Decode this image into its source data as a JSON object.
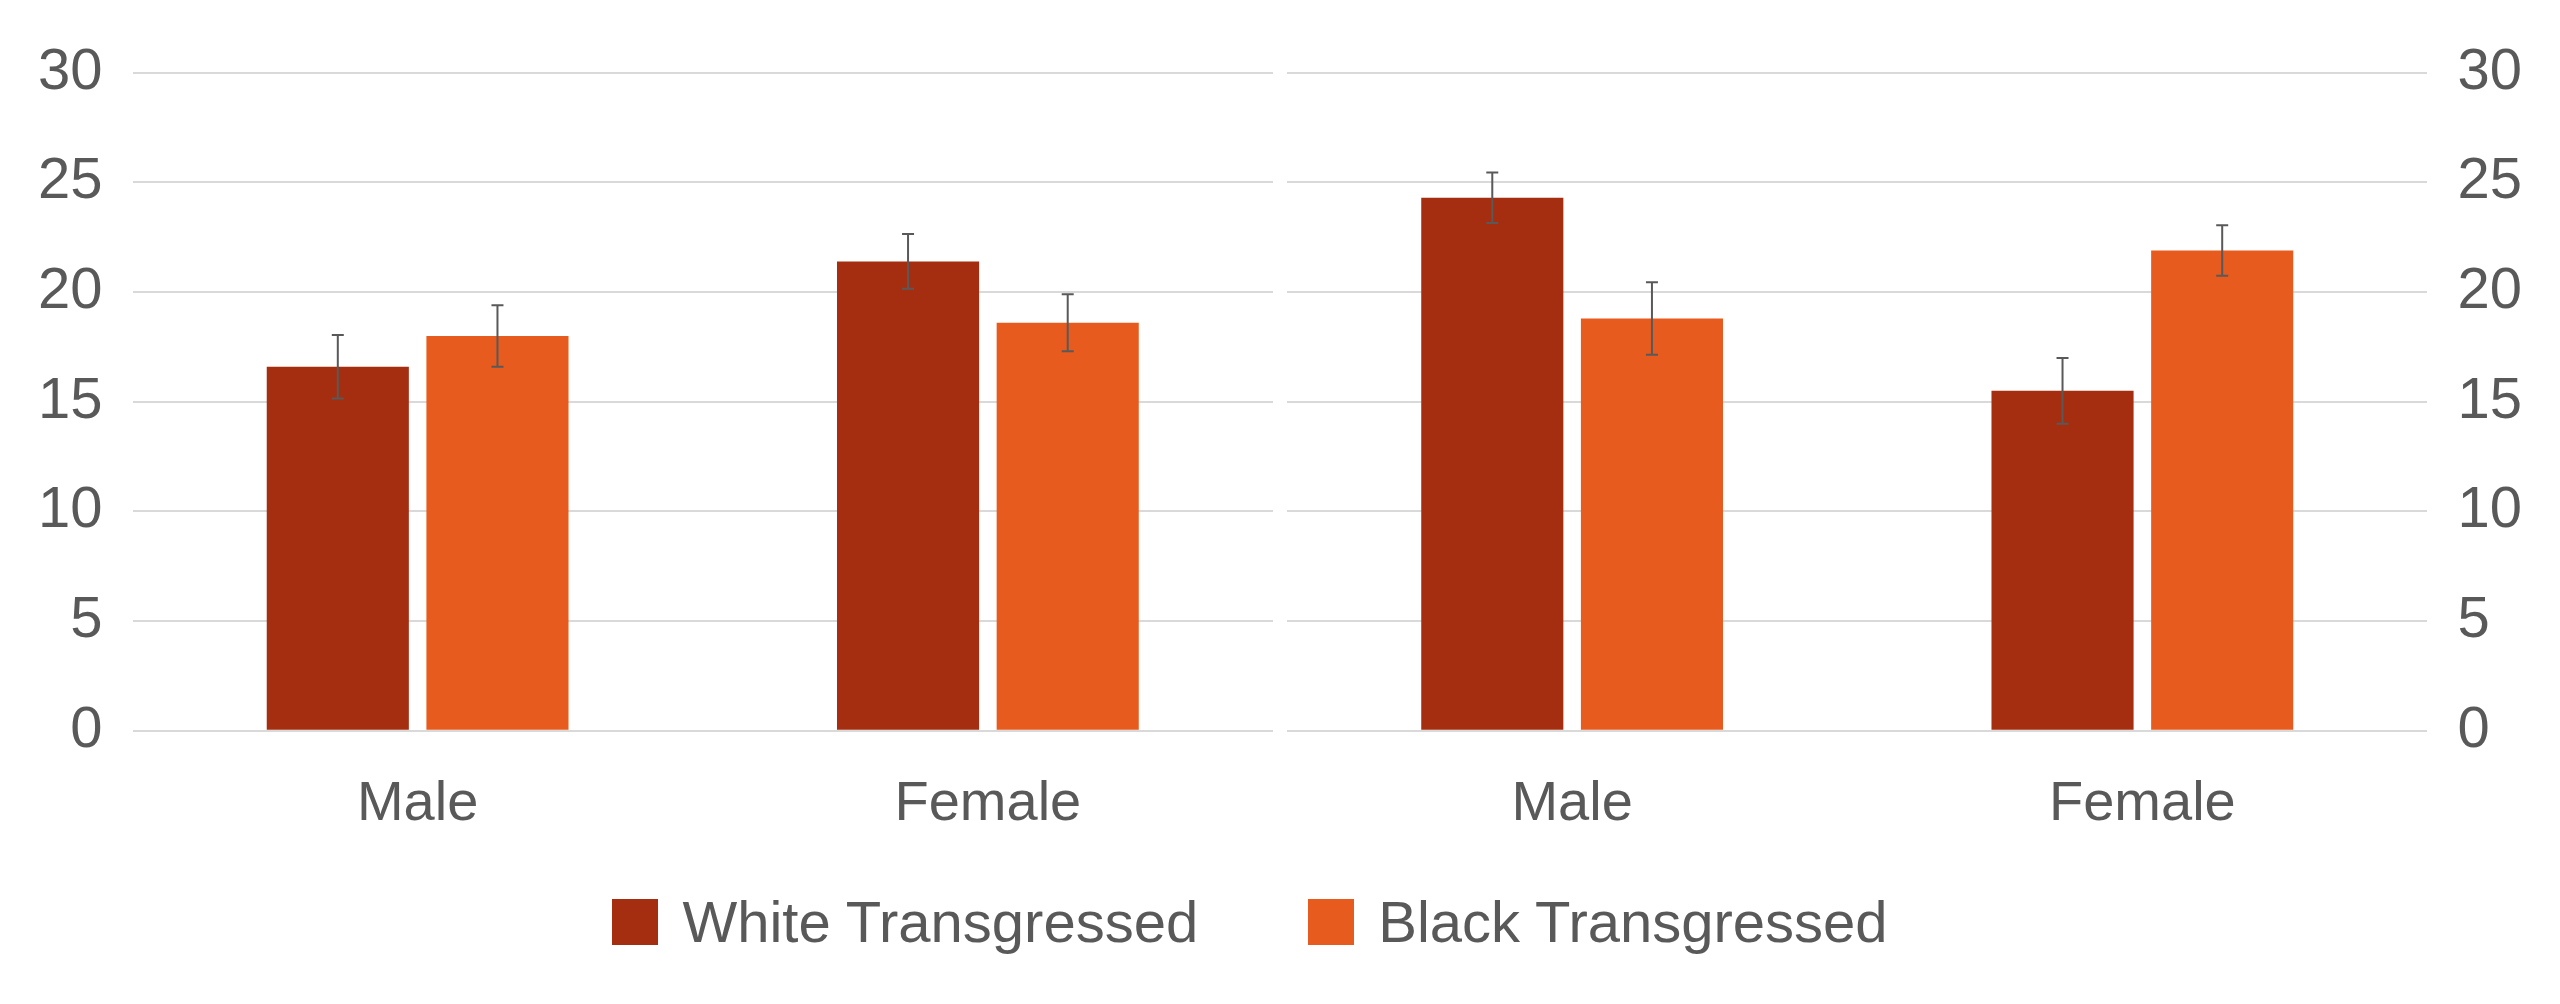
{
  "chart_data": [
    {
      "type": "bar",
      "categories": [
        "Male",
        "Female"
      ],
      "series": [
        {
          "name": "White Transgressed",
          "color": "#a52e10",
          "values": [
            16.6,
            21.4
          ],
          "errors": [
            1.45,
            1.25
          ]
        },
        {
          "name": "Black Transgressed",
          "color": "#e75b1e",
          "values": [
            18.0,
            18.6
          ],
          "errors": [
            1.4,
            1.3
          ]
        }
      ],
      "ylim": [
        0,
        30
      ],
      "yticks": [
        0,
        5,
        10,
        15,
        20,
        25,
        30
      ],
      "grid": "y",
      "legend": "bottom"
    },
    {
      "type": "bar",
      "categories": [
        "Male",
        "Female"
      ],
      "series": [
        {
          "color": "#a52e10",
          "values": [
            24.3,
            15.5
          ],
          "errors": [
            1.15,
            1.5
          ]
        },
        {
          "color": "#e75b1e",
          "values": [
            18.8,
            21.9
          ],
          "errors": [
            1.65,
            1.15
          ]
        }
      ],
      "ylim": [
        0,
        30
      ],
      "yticks": [
        0,
        5,
        10,
        15,
        20,
        25,
        30
      ],
      "grid": "y"
    }
  ]
}
